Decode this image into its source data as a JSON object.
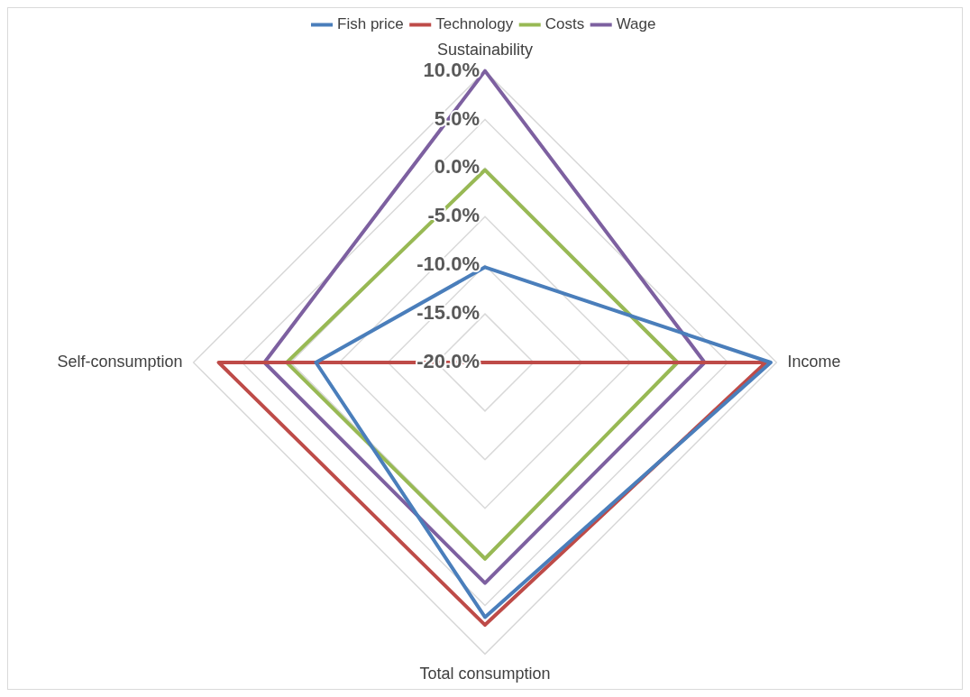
{
  "chart_data": {
    "type": "radar",
    "categories": [
      "Sustainability",
      "Income",
      "Total consumption",
      "Self-consumption"
    ],
    "series": [
      {
        "name": "Fish price",
        "color": "#4a7ebb",
        "values": [
          -10.2,
          9.4,
          6.2,
          -2.6
        ]
      },
      {
        "name": "Technology",
        "color": "#be4b48",
        "values": [
          -20.0,
          8.9,
          7.0,
          7.4
        ]
      },
      {
        "name": "Costs",
        "color": "#98b954",
        "values": [
          -0.2,
          -0.2,
          0.2,
          0.4
        ]
      },
      {
        "name": "Wage",
        "color": "#7d60a0",
        "values": [
          10.0,
          2.6,
          2.7,
          2.7
        ]
      }
    ],
    "ylim": [
      -20,
      10
    ],
    "yticks": [
      {
        "value": -20,
        "label": "-20.0%"
      },
      {
        "value": -15,
        "label": "-15.0%"
      },
      {
        "value": -10,
        "label": "-10.0%"
      },
      {
        "value": -5,
        "label": "-5.0%"
      },
      {
        "value": 0,
        "label": "0.0%"
      },
      {
        "value": 5,
        "label": "5.0%"
      },
      {
        "value": 10,
        "label": "10.0%"
      }
    ],
    "grid": true,
    "legend": "top",
    "marker": "none",
    "line_style": "solid"
  }
}
